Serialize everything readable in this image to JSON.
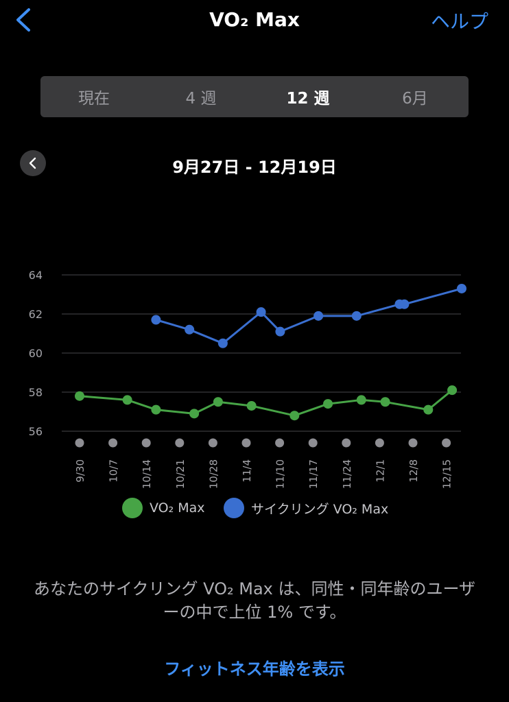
{
  "nav": {
    "title": "VO₂ Max",
    "help": "ヘルプ",
    "back_icon": "chevron-left-icon"
  },
  "tabs": [
    {
      "label": "現在",
      "active": false
    },
    {
      "label": "4 週",
      "active": false
    },
    {
      "label": "12 週",
      "active": true
    },
    {
      "label": "6月",
      "active": false
    }
  ],
  "range": {
    "label": "9月27日 - 12月19日",
    "prev_icon": "chevron-left-icon"
  },
  "chart_data": {
    "type": "line",
    "x_ticks": [
      "9/30",
      "10/7",
      "10/14",
      "10/21",
      "10/28",
      "11/4",
      "11/10",
      "11/17",
      "11/24",
      "12/1",
      "12/8",
      "12/15"
    ],
    "y_ticks": [
      56,
      58,
      60,
      62,
      64
    ],
    "ylim": [
      56,
      64
    ],
    "xlim": [
      "2021-09-30",
      "2021-12-19"
    ],
    "grid": true,
    "legend_position": "bottom",
    "series": [
      {
        "name": "VO₂ Max",
        "color": "#47a446",
        "points": [
          {
            "x": "2021-09-30",
            "y": 57.8
          },
          {
            "x": "2021-10-10",
            "y": 57.6
          },
          {
            "x": "2021-10-16",
            "y": 57.1
          },
          {
            "x": "2021-10-24",
            "y": 56.9
          },
          {
            "x": "2021-10-29",
            "y": 57.5
          },
          {
            "x": "2021-11-05",
            "y": 57.3
          },
          {
            "x": "2021-11-14",
            "y": 56.8
          },
          {
            "x": "2021-11-21",
            "y": 57.4
          },
          {
            "x": "2021-11-28",
            "y": 57.6
          },
          {
            "x": "2021-12-03",
            "y": 57.5
          },
          {
            "x": "2021-12-12",
            "y": 57.1
          },
          {
            "x": "2021-12-17",
            "y": 58.1
          }
        ]
      },
      {
        "name": "サイクリング VO₂ Max",
        "color": "#3a6fd0",
        "points": [
          {
            "x": "2021-10-16",
            "y": 61.7
          },
          {
            "x": "2021-10-23",
            "y": 61.2
          },
          {
            "x": "2021-10-30",
            "y": 60.5
          },
          {
            "x": "2021-11-07",
            "y": 62.1
          },
          {
            "x": "2021-11-11",
            "y": 61.1
          },
          {
            "x": "2021-11-19",
            "y": 61.9
          },
          {
            "x": "2021-11-27",
            "y": 61.9
          },
          {
            "x": "2021-12-06",
            "y": 62.5
          },
          {
            "x": "2021-12-07",
            "y": 62.5
          },
          {
            "x": "2021-12-19",
            "y": 63.3
          }
        ]
      }
    ]
  },
  "legend": [
    {
      "label": "VO₂ Max",
      "color": "#47a446"
    },
    {
      "label": "サイクリング VO₂ Max",
      "color": "#3a6fd0"
    }
  ],
  "summary": "あなたのサイクリング VO₂ Max は、同性・同年齢のユーザーの中で上位 1% です。",
  "link": "フィットネス年齢を表示"
}
